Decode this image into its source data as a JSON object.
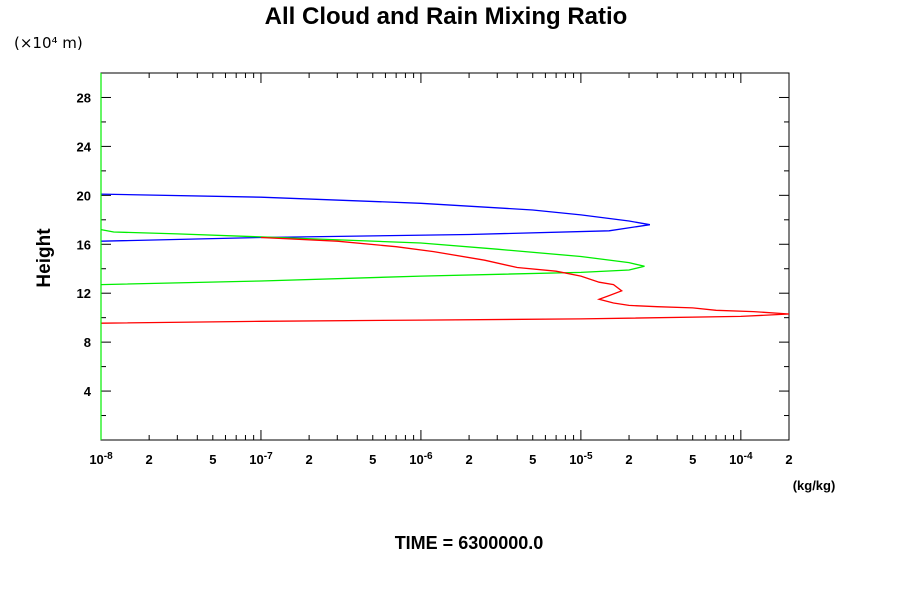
{
  "chart_data": {
    "type": "line",
    "title": "All Cloud and Rain Mixing Ratio",
    "ylabel": "Height",
    "y_scale_label": "(×10⁴ m)",
    "x_unit": "(kg/kg)",
    "footer": "TIME = 6300000.0",
    "x_scale": "log",
    "xlim": [
      1e-08,
      0.0002
    ],
    "ylim": [
      0,
      30
    ],
    "grid": false,
    "y_ticks": [
      "4",
      "8",
      "12",
      "16",
      "20",
      "24",
      "28"
    ],
    "x_ticks": [
      {
        "mant": "10",
        "exp": "-8"
      },
      {
        "mant": "2"
      },
      {
        "mant": "5"
      },
      {
        "mant": "10",
        "exp": "-7"
      },
      {
        "mant": "2"
      },
      {
        "mant": "5"
      },
      {
        "mant": "10",
        "exp": "-6"
      },
      {
        "mant": "2"
      },
      {
        "mant": "5"
      },
      {
        "mant": "10",
        "exp": "-5"
      },
      {
        "mant": "2"
      },
      {
        "mant": "5"
      },
      {
        "mant": "10",
        "exp": "-4"
      },
      {
        "mant": "2"
      }
    ],
    "series": [
      {
        "color": "#0000ff",
        "points": [
          [
            1e-08,
            20.1
          ],
          [
            1e-07,
            19.85
          ],
          [
            1e-06,
            19.35
          ],
          [
            5e-06,
            18.8
          ],
          [
            1e-05,
            18.4
          ],
          [
            2e-05,
            17.9
          ],
          [
            2.7e-05,
            17.6
          ],
          [
            1.5e-05,
            17.1
          ],
          [
            2e-06,
            16.8
          ],
          [
            1e-07,
            16.55
          ],
          [
            1e-08,
            16.25
          ]
        ]
      },
      {
        "color": "#00ee00",
        "points": [
          [
            1e-08,
            17.2
          ],
          [
            1.2e-08,
            17.0
          ],
          [
            3e-08,
            16.85
          ],
          [
            1e-07,
            16.6
          ],
          [
            1e-06,
            16.1
          ],
          [
            3e-06,
            15.6
          ],
          [
            1e-05,
            15.0
          ],
          [
            2e-05,
            14.5
          ],
          [
            2.5e-05,
            14.2
          ],
          [
            2e-05,
            13.9
          ],
          [
            1e-05,
            13.7
          ],
          [
            1e-06,
            13.4
          ],
          [
            1e-07,
            13.0
          ],
          [
            1e-08,
            12.7
          ]
        ]
      },
      {
        "color": "#ff0000",
        "points": [
          [
            1e-07,
            16.55
          ],
          [
            3e-07,
            16.25
          ],
          [
            7e-07,
            15.8
          ],
          [
            1.2e-06,
            15.4
          ],
          [
            2.5e-06,
            14.7
          ],
          [
            4e-06,
            14.1
          ],
          [
            7e-06,
            13.8
          ],
          [
            1e-05,
            13.4
          ],
          [
            1.3e-05,
            12.9
          ],
          [
            1.6e-05,
            12.7
          ],
          [
            1.8e-05,
            12.2
          ],
          [
            1.5e-05,
            11.8
          ],
          [
            1.3e-05,
            11.5
          ],
          [
            1.6e-05,
            11.2
          ],
          [
            2e-05,
            11.0
          ],
          [
            3e-05,
            10.9
          ],
          [
            5e-05,
            10.8
          ],
          [
            7e-05,
            10.6
          ],
          [
            0.00012,
            10.5
          ],
          [
            0.0002,
            10.3
          ],
          [
            0.0001,
            10.1
          ],
          [
            1e-05,
            9.9
          ],
          [
            1e-06,
            9.8
          ],
          [
            1e-07,
            9.7
          ],
          [
            1e-08,
            9.55
          ]
        ]
      }
    ]
  }
}
